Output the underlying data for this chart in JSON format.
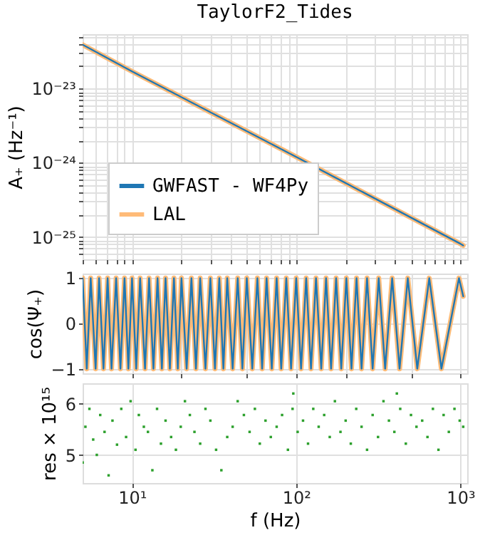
{
  "chart_data": [
    {
      "type": "line",
      "title": "TaylorF2_Tides",
      "ylabel": "A₊ (Hz⁻¹)",
      "log": "xy",
      "grid": true,
      "legend": "bottom left",
      "tick_labels": "y",
      "x": [
        5,
        10,
        100,
        1000,
        1040
      ],
      "series": [
        {
          "name": "GWFAST - WF4Py",
          "color": "#1f77b4",
          "values": [
            3.9e-23,
            1.7e-23,
            1.2e-24,
            8.1e-26,
            7.7e-26
          ]
        },
        {
          "name": "LAL",
          "color": "#ffbb78",
          "values": [
            3.9e-23,
            1.7e-23,
            1.2e-24,
            8.1e-26,
            7.7e-26
          ]
        }
      ],
      "xlim": [
        5,
        1100
      ],
      "xticks": [
        {
          "value": 5,
          "label": null
        },
        {
          "value": 6,
          "label": null
        },
        {
          "value": 7,
          "label": null
        },
        {
          "value": 8,
          "label": null
        },
        {
          "value": 9,
          "label": null
        },
        {
          "value": 10,
          "label": null
        },
        {
          "value": 20,
          "label": null
        },
        {
          "value": 30,
          "label": null
        },
        {
          "value": 40,
          "label": null
        },
        {
          "value": 50,
          "label": null
        },
        {
          "value": 60,
          "label": null
        },
        {
          "value": 70,
          "label": null
        },
        {
          "value": 80,
          "label": null
        },
        {
          "value": 90,
          "label": null
        },
        {
          "value": 100,
          "label": null
        },
        {
          "value": 200,
          "label": null
        },
        {
          "value": 300,
          "label": null
        },
        {
          "value": 400,
          "label": null
        },
        {
          "value": 500,
          "label": null
        },
        {
          "value": 600,
          "label": null
        },
        {
          "value": 700,
          "label": null
        },
        {
          "value": 800,
          "label": null
        },
        {
          "value": 900,
          "label": null
        },
        {
          "value": 1000,
          "label": null
        }
      ],
      "ylim": [
        5e-26,
        5.4e-23
      ],
      "yticks": [
        {
          "value": 6e-26,
          "label": null
        },
        {
          "value": 7e-26,
          "label": null
        },
        {
          "value": 8e-26,
          "label": null
        },
        {
          "value": 9e-26,
          "label": null
        },
        {
          "value": 1e-25,
          "label": "10⁻²⁵"
        },
        {
          "value": 2e-25,
          "label": null
        },
        {
          "value": 3e-25,
          "label": null
        },
        {
          "value": 4e-25,
          "label": null
        },
        {
          "value": 5e-25,
          "label": null
        },
        {
          "value": 6e-25,
          "label": null
        },
        {
          "value": 7e-25,
          "label": null
        },
        {
          "value": 8e-25,
          "label": null
        },
        {
          "value": 9e-25,
          "label": null
        },
        {
          "value": 1e-24,
          "label": "10⁻²⁴"
        },
        {
          "value": 2e-24,
          "label": null
        },
        {
          "value": 3e-24,
          "label": null
        },
        {
          "value": 4e-24,
          "label": null
        },
        {
          "value": 5e-24,
          "label": null
        },
        {
          "value": 6e-24,
          "label": null
        },
        {
          "value": 7e-24,
          "label": null
        },
        {
          "value": 8e-24,
          "label": null
        },
        {
          "value": 9e-24,
          "label": null
        },
        {
          "value": 1e-23,
          "label": "10⁻²³"
        },
        {
          "value": 2e-23,
          "label": null
        },
        {
          "value": 3e-23,
          "label": null
        },
        {
          "value": 4e-23,
          "label": null
        },
        {
          "value": 5e-23,
          "label": null
        }
      ]
    },
    {
      "type": "line",
      "ylabel": "cos(Ψ₊)",
      "log": "x",
      "grid": true,
      "tick_labels": "y",
      "x": [
        5,
        5.3,
        5.6,
        6,
        6.3,
        6.7,
        7.1,
        7.5,
        8,
        8.5,
        9,
        9.5,
        10,
        10.6,
        11.2,
        12,
        12.7,
        13.5,
        14.3,
        15.2,
        16,
        17,
        18,
        19,
        20,
        21.5,
        23,
        24.5,
        26,
        28,
        30,
        32,
        34,
        36,
        38,
        41,
        44,
        47,
        50,
        54,
        58,
        62,
        66,
        71,
        76,
        81,
        87,
        93,
        100,
        107,
        115,
        123,
        132,
        142,
        152,
        163,
        175,
        188,
        202,
        217,
        233,
        250,
        270,
        292,
        318,
        348,
        384,
        426,
        478,
        546,
        646,
        766,
        980,
        1040
      ],
      "series": [
        {
          "color": "#1f77b4",
          "values": [
            1,
            -1,
            1,
            -1,
            1,
            -1,
            1,
            -1,
            1,
            -1,
            1,
            -1,
            1,
            -1,
            1,
            -1,
            1,
            -1,
            1,
            -1,
            1,
            -1,
            1,
            -1,
            1,
            -1,
            1,
            -1,
            1,
            -1,
            1,
            -1,
            1,
            -1,
            1,
            -1,
            1,
            -1,
            1,
            -1,
            1,
            -1,
            1,
            -1,
            1,
            -1,
            1,
            -1,
            1,
            -1,
            1,
            -1,
            1,
            -1,
            1,
            -1,
            1,
            -1,
            1,
            -1,
            1,
            -1,
            1,
            -1,
            1,
            -1,
            1,
            -1,
            1,
            -1,
            1,
            -1,
            1,
            0.6
          ]
        },
        {
          "color": "#ffbb78",
          "values": [
            1,
            -1,
            1,
            -1,
            1,
            -1,
            1,
            -1,
            1,
            -1,
            1,
            -1,
            1,
            -1,
            1,
            -1,
            1,
            -1,
            1,
            -1,
            1,
            -1,
            1,
            -1,
            1,
            -1,
            1,
            -1,
            1,
            -1,
            1,
            -1,
            1,
            -1,
            1,
            -1,
            1,
            -1,
            1,
            -1,
            1,
            -1,
            1,
            -1,
            1,
            -1,
            1,
            -1,
            1,
            -1,
            1,
            -1,
            1,
            -1,
            1,
            -1,
            1,
            -1,
            1,
            -1,
            1,
            -1,
            1,
            -1,
            1,
            -1,
            1,
            -1,
            1,
            -1,
            1,
            -1,
            1,
            0.6
          ]
        }
      ],
      "xlim": [
        5,
        1100
      ],
      "xticks": [
        {
          "value": 10,
          "label": null
        },
        {
          "value": 20,
          "label": null
        },
        {
          "value": 50,
          "label": null
        },
        {
          "value": 100,
          "label": null
        },
        {
          "value": 200,
          "label": null
        },
        {
          "value": 500,
          "label": null
        },
        {
          "value": 1000,
          "label": null
        }
      ],
      "ylim": [
        -1.1,
        1.1
      ],
      "yticks": [
        -1,
        0,
        1
      ]
    },
    {
      "type": "scatter",
      "ylabel": "res × 10¹⁵",
      "xlabel": "f (Hz)",
      "log": "x",
      "grid": true,
      "marker": "square",
      "x": [
        5,
        5.2,
        5.5,
        5.8,
        6.1,
        6.4,
        6.8,
        7.2,
        7.6,
        8.1,
        8.6,
        9.2,
        9.8,
        10.5,
        11,
        11.8,
        12.5,
        13.3,
        14.2,
        15,
        16,
        17.3,
        18.5,
        19.8,
        21,
        22.5,
        24,
        26,
        28,
        30,
        32.5,
        35,
        38,
        41,
        44,
        48,
        52,
        56,
        60,
        65,
        70,
        76,
        82,
        89,
        95,
        96,
        102,
        110,
        118,
        127,
        137,
        148,
        160,
        172,
        186,
        200,
        215,
        232,
        250,
        270,
        292,
        315,
        340,
        367,
        396,
        410,
        430,
        465,
        500,
        540,
        585,
        630,
        680,
        735,
        790,
        850,
        920,
        990,
        1040
      ],
      "series": [
        {
          "color": "#2ca02c",
          "values": [
            4.85,
            5.55,
            5.9,
            5.3,
            5.0,
            5.78,
            5.45,
            4.6,
            5.67,
            5.2,
            5.9,
            5.35,
            6.05,
            5.1,
            5.78,
            5.55,
            5.45,
            4.7,
            5.9,
            5.22,
            5.67,
            5.35,
            5.1,
            5.55,
            6.05,
            5.78,
            5.45,
            5.22,
            5.9,
            5.67,
            5.1,
            4.7,
            5.35,
            5.55,
            6.05,
            5.78,
            5.45,
            5.9,
            5.22,
            5.67,
            5.35,
            5.55,
            5.78,
            5.1,
            5.9,
            6.2,
            5.45,
            5.67,
            5.22,
            5.9,
            5.55,
            5.78,
            5.35,
            6.05,
            5.45,
            5.67,
            5.22,
            5.9,
            5.55,
            5.1,
            5.78,
            5.35,
            6.05,
            5.67,
            5.45,
            6.2,
            5.9,
            5.22,
            5.78,
            5.55,
            5.67,
            5.35,
            5.9,
            5.1,
            5.78,
            5.45,
            5.9,
            5.67,
            5.55
          ]
        }
      ],
      "xlim": [
        5,
        1100
      ],
      "xticks": [
        {
          "value": 10,
          "label": "10¹"
        },
        {
          "value": 100,
          "label": "10²"
        },
        {
          "value": 1000,
          "label": "10³"
        }
      ],
      "ylim": [
        4.45,
        6.4
      ],
      "yticks": [
        5,
        6
      ]
    }
  ]
}
